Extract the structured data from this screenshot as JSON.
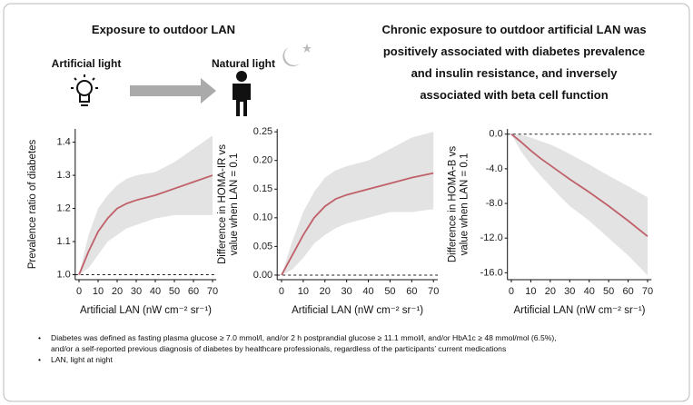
{
  "header": {
    "left_title": "Exposure to outdoor LAN",
    "icon_labels": [
      "Artificial light",
      "Natural light"
    ],
    "conclusion": [
      "Chronic exposure to outdoor artificial LAN was",
      "positively associated with diabetes prevalence",
      "and insulin resistance, and inversely",
      "associated with beta cell function"
    ]
  },
  "chart_data": [
    {
      "type": "line",
      "y_label": [
        "Prevalence ratio of diabetes"
      ],
      "x_label": "Artificial LAN (nW cm⁻² sr⁻¹)",
      "color": "#c0606a",
      "band_color": "#e3e3e3",
      "hline": 1,
      "x": [
        0,
        5,
        10,
        15,
        20,
        25,
        30,
        40,
        50,
        60,
        70
      ],
      "values": [
        1.0,
        1.07,
        1.13,
        1.17,
        1.2,
        1.215,
        1.225,
        1.24,
        1.26,
        1.28,
        1.3
      ],
      "ci_lower": [
        1.0,
        1.02,
        1.06,
        1.1,
        1.12,
        1.14,
        1.15,
        1.17,
        1.18,
        1.18,
        1.18
      ],
      "ci_upper": [
        1.0,
        1.12,
        1.2,
        1.24,
        1.27,
        1.29,
        1.3,
        1.31,
        1.34,
        1.38,
        1.42
      ],
      "xlim": [
        -2,
        72
      ],
      "xticks": [
        0,
        10,
        20,
        30,
        40,
        50,
        60,
        70
      ],
      "ylim": [
        0.985,
        1.44
      ],
      "yticks": [
        {
          "value": 1,
          "label": "1.0"
        },
        1.1,
        1.2,
        1.3,
        1.4
      ]
    },
    {
      "type": "line",
      "y_label": [
        "Difference in HOMA-IR vs",
        "value when LAN = 0.1"
      ],
      "x_label": "Artificial LAN (nW cm⁻² sr⁻¹)",
      "color": "#c0606a",
      "band_color": "#e3e3e3",
      "hline": 0,
      "x": [
        0,
        5,
        10,
        15,
        20,
        25,
        30,
        40,
        50,
        60,
        70
      ],
      "values": [
        0,
        0.035,
        0.07,
        0.1,
        0.12,
        0.133,
        0.14,
        0.15,
        0.16,
        0.17,
        0.178
      ],
      "ci_lower": [
        0,
        0.01,
        0.03,
        0.055,
        0.07,
        0.082,
        0.09,
        0.1,
        0.11,
        0.11,
        0.115
      ],
      "ci_upper": [
        0,
        0.06,
        0.11,
        0.145,
        0.17,
        0.183,
        0.19,
        0.2,
        0.22,
        0.24,
        0.25
      ],
      "xlim": [
        -2,
        72
      ],
      "xticks": [
        0,
        10,
        20,
        30,
        40,
        50,
        60,
        70
      ],
      "ylim": [
        -0.008,
        0.255
      ],
      "yticks": [
        {
          "value": 0,
          "label": "0.00"
        },
        0.05,
        {
          "value": 0.1,
          "label": "0.10"
        },
        0.15,
        {
          "value": 0.2,
          "label": "0.20"
        },
        0.25
      ]
    },
    {
      "type": "line",
      "y_label": [
        "Difference in HOMA-B vs",
        "value when LAN = 0.1"
      ],
      "x_label": "Artificial LAN (nW cm⁻² sr⁻¹)",
      "color": "#c0606a",
      "band_color": "#e3e3e3",
      "hline": 0,
      "x": [
        0,
        5,
        10,
        15,
        20,
        25,
        30,
        40,
        50,
        60,
        70
      ],
      "values": [
        0,
        -0.9,
        -1.9,
        -2.8,
        -3.6,
        -4.4,
        -5.2,
        -6.7,
        -8.3,
        -10,
        -11.8
      ],
      "ci_lower": [
        0,
        -2,
        -3.5,
        -4.8,
        -6,
        -7.2,
        -8.3,
        -10,
        -12,
        -14,
        -16.3
      ],
      "ci_upper": [
        0,
        -0.1,
        -0.4,
        -0.8,
        -1.2,
        -1.7,
        -2.3,
        -3.5,
        -4.8,
        -6,
        -7.3
      ],
      "xlim": [
        -2,
        72
      ],
      "xticks": [
        0,
        10,
        20,
        30,
        40,
        50,
        60,
        70
      ],
      "ylim": [
        -16.8,
        0.6
      ],
      "yticks": [
        {
          "value": 0,
          "label": "0.0"
        },
        {
          "value": -4,
          "label": "-4.0"
        },
        {
          "value": -8,
          "label": "-8.0"
        },
        {
          "value": -12,
          "label": "-12.0"
        },
        {
          "value": -16,
          "label": "-16.0"
        }
      ]
    }
  ],
  "notes": [
    {
      "bullet": "•",
      "lines": [
        "Diabetes was defined as fasting plasma glucose ≥ 7.0 mmol/l, and/or 2 h postprandial glucose ≥ 11.1 mmol/l, and/or HbA1c ≥ 48 mmol/mol (6.5%),",
        "and/or a self-reported previous diagnosis of diabetes by healthcare professionals, regardless of the participants’ current medications"
      ]
    },
    {
      "bullet": "•",
      "lines": [
        "LAN, light at night"
      ]
    }
  ]
}
